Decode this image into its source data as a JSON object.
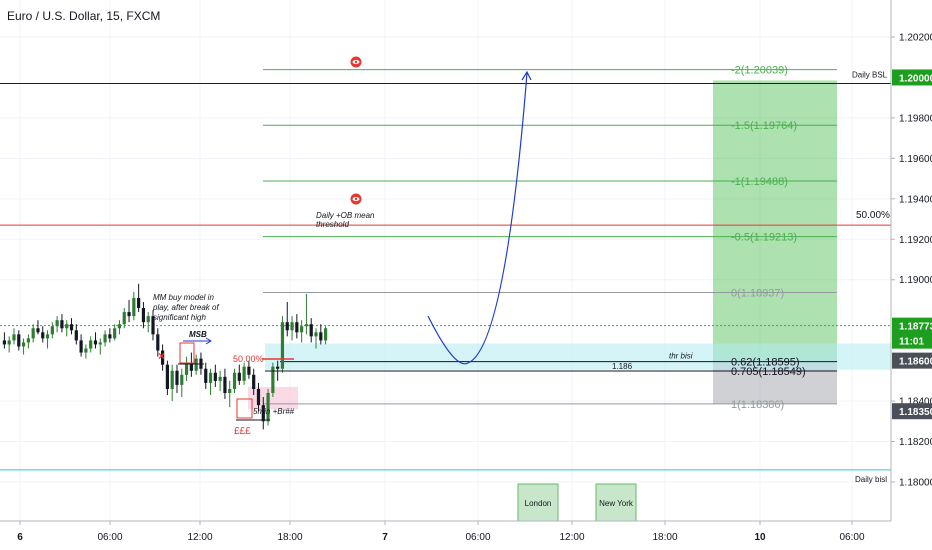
{
  "chart_data": {
    "type": "candlestick",
    "title": "Euro / U.S. Dollar, 15, FXCM",
    "ylim": [
      1.179,
      1.203
    ],
    "y_ticks": [
      "1.20200",
      "1.19800",
      "1.19600",
      "1.19400",
      "1.19200",
      "1.19000",
      "1.18400",
      "1.18200",
      "1.18000"
    ],
    "x_ticks": [
      "6",
      "06:00",
      "12:00",
      "18:00",
      "7",
      "06:00",
      "12:00",
      "18:00",
      "10",
      "06:00"
    ],
    "price_badges": [
      {
        "label": "1.20000",
        "value": 1.2,
        "color": "#1e9e1e"
      },
      {
        "label": "1.18773",
        "value": 1.18773,
        "color": "#1e9e1e"
      },
      {
        "label": "11:01",
        "value": 1.1868,
        "color": "#1e9e1e"
      },
      {
        "label": "1.18600",
        "value": 1.186,
        "color": "#4a4f5a"
      },
      {
        "label": "1.18350",
        "value": 1.1835,
        "color": "#4a4f5a"
      }
    ],
    "hlines": [
      {
        "name": "Daily BSL",
        "value": 1.1997,
        "color": "#1010a0"
      },
      {
        "name": "50.00%",
        "value": 1.1927,
        "color": "#e53935"
      },
      {
        "name": "Daily bisl",
        "value": 1.1806,
        "color": "#26c6da"
      }
    ],
    "fib_levels": [
      {
        "label": "-2(1.20039)",
        "value": 1.20039
      },
      {
        "label": "-1.5(1.19764)",
        "value": 1.19764
      },
      {
        "label": "-1(1.19488)",
        "value": 1.19488
      },
      {
        "label": "-0.5(1.19213)",
        "value": 1.19213
      },
      {
        "label": "0(1.18937)",
        "value": 1.18937
      },
      {
        "label": "0.62(1.18595)",
        "value": 1.18595
      },
      {
        "label": "0.705(1.18549)",
        "value": 1.18549
      },
      {
        "label": "1(1.18386)",
        "value": 1.18386
      }
    ],
    "annotations": {
      "mm_note": [
        "MM buy model in",
        "play, after break of",
        "significant high"
      ],
      "msb": "MSB",
      "ob_note": [
        "Daily +OB mean",
        "threshold"
      ],
      "half_label": "50.00%",
      "ob_5min": "5min +Br##",
      "eq": "£££",
      "thr": "thr bisi",
      "level_1186": "1.186",
      "sessions": [
        "London",
        "New York"
      ],
      "x_mark": "×"
    },
    "candles": [
      [
        1.187,
        1.1874,
        1.1866,
        1.1868
      ],
      [
        1.1868,
        1.1872,
        1.1864,
        1.187
      ],
      [
        1.187,
        1.1876,
        1.1868,
        1.1873
      ],
      [
        1.1873,
        1.1875,
        1.1865,
        1.1867
      ],
      [
        1.1867,
        1.1871,
        1.1863,
        1.1869
      ],
      [
        1.1869,
        1.1873,
        1.1866,
        1.1871
      ],
      [
        1.1871,
        1.1878,
        1.1869,
        1.1876
      ],
      [
        1.1876,
        1.188,
        1.1873,
        1.1874
      ],
      [
        1.1874,
        1.1877,
        1.1869,
        1.1871
      ],
      [
        1.1871,
        1.1875,
        1.1866,
        1.1873
      ],
      [
        1.1873,
        1.1879,
        1.1871,
        1.1877
      ],
      [
        1.1877,
        1.1882,
        1.1874,
        1.188
      ],
      [
        1.188,
        1.1883,
        1.1874,
        1.1876
      ],
      [
        1.1876,
        1.188,
        1.1872,
        1.1878
      ],
      [
        1.1878,
        1.1881,
        1.1873,
        1.1875
      ],
      [
        1.1875,
        1.1878,
        1.1868,
        1.187
      ],
      [
        1.187,
        1.1873,
        1.1862,
        1.1864
      ],
      [
        1.1864,
        1.1868,
        1.1861,
        1.1866
      ],
      [
        1.1866,
        1.1872,
        1.1864,
        1.187
      ],
      [
        1.187,
        1.1874,
        1.1866,
        1.1868
      ],
      [
        1.1868,
        1.1871,
        1.1863,
        1.1869
      ],
      [
        1.1869,
        1.1875,
        1.1867,
        1.1873
      ],
      [
        1.1873,
        1.1876,
        1.1869,
        1.1871
      ],
      [
        1.1871,
        1.1878,
        1.187,
        1.1876
      ],
      [
        1.1876,
        1.188,
        1.1873,
        1.1878
      ],
      [
        1.1878,
        1.1886,
        1.1876,
        1.1884
      ],
      [
        1.1884,
        1.189,
        1.1879,
        1.1882
      ],
      [
        1.1882,
        1.1894,
        1.188,
        1.1891
      ],
      [
        1.1891,
        1.1898,
        1.1884,
        1.1886
      ],
      [
        1.1886,
        1.1889,
        1.1876,
        1.1879
      ],
      [
        1.1879,
        1.1884,
        1.1874,
        1.1882
      ],
      [
        1.1882,
        1.1885,
        1.187,
        1.1873
      ],
      [
        1.1873,
        1.1876,
        1.1862,
        1.1865
      ],
      [
        1.1865,
        1.1868,
        1.1855,
        1.1858
      ],
      [
        1.1858,
        1.186,
        1.1843,
        1.1846
      ],
      [
        1.1846,
        1.1858,
        1.184,
        1.1855
      ],
      [
        1.1855,
        1.1858,
        1.1844,
        1.1848
      ],
      [
        1.1848,
        1.1856,
        1.1842,
        1.1853
      ],
      [
        1.1853,
        1.1862,
        1.185,
        1.1859
      ],
      [
        1.1859,
        1.1864,
        1.1852,
        1.1855
      ],
      [
        1.1855,
        1.1863,
        1.1853,
        1.1861
      ],
      [
        1.1861,
        1.1864,
        1.1853,
        1.1856
      ],
      [
        1.1856,
        1.1859,
        1.1846,
        1.1849
      ],
      [
        1.1849,
        1.1856,
        1.1843,
        1.1854
      ],
      [
        1.1854,
        1.1858,
        1.1847,
        1.185
      ],
      [
        1.185,
        1.1855,
        1.1845,
        1.1852
      ],
      [
        1.1852,
        1.1856,
        1.1841,
        1.1844
      ],
      [
        1.1844,
        1.185,
        1.1837,
        1.1846
      ],
      [
        1.1846,
        1.1856,
        1.1844,
        1.1854
      ],
      [
        1.1854,
        1.1858,
        1.1848,
        1.185
      ],
      [
        1.185,
        1.1859,
        1.1848,
        1.1857
      ],
      [
        1.1857,
        1.186,
        1.1851,
        1.1853
      ],
      [
        1.1853,
        1.1856,
        1.1843,
        1.1846
      ],
      [
        1.1846,
        1.1849,
        1.1835,
        1.1838
      ],
      [
        1.1838,
        1.1842,
        1.1826,
        1.183
      ],
      [
        1.183,
        1.1846,
        1.1828,
        1.1844
      ],
      [
        1.1844,
        1.1859,
        1.1842,
        1.1857
      ],
      [
        1.1857,
        1.186,
        1.185,
        1.1856
      ],
      [
        1.1856,
        1.1882,
        1.1854,
        1.1879
      ],
      [
        1.1879,
        1.1889,
        1.1872,
        1.1875
      ],
      [
        1.1875,
        1.1882,
        1.187,
        1.1879
      ],
      [
        1.1879,
        1.1883,
        1.1871,
        1.1874
      ],
      [
        1.1874,
        1.188,
        1.1869,
        1.1877
      ],
      [
        1.1877,
        1.1893,
        1.1873,
        1.1878
      ],
      [
        1.1878,
        1.1881,
        1.1869,
        1.1872
      ],
      [
        1.1872,
        1.1876,
        1.1866,
        1.1874
      ],
      [
        1.1874,
        1.1878,
        1.1868,
        1.187
      ],
      [
        1.187,
        1.1877,
        1.1868,
        1.1876
      ]
    ]
  }
}
